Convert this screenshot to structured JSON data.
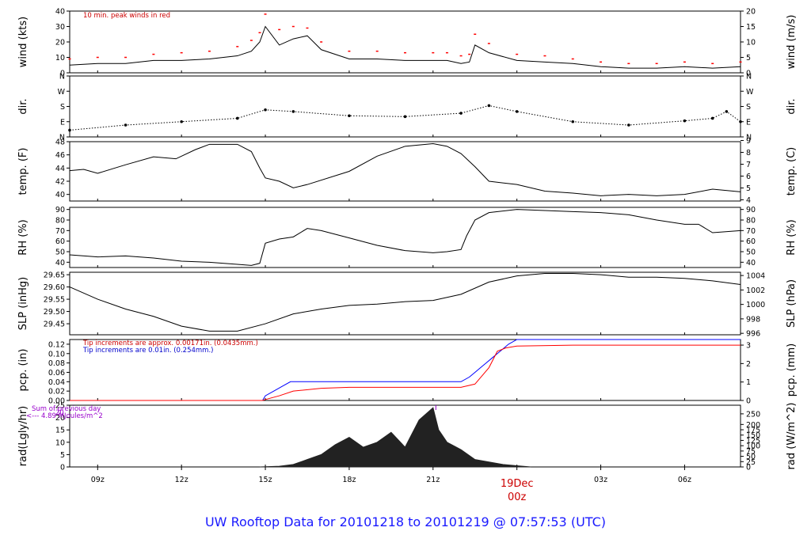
{
  "footer": {
    "title": "UW Rooftop Data for 20101218  to  20101219 @ 07:57:53  (UTC)",
    "color": "#1a1aff"
  },
  "x_axis": {
    "ticks": [
      {
        "t": 1,
        "label": "09z"
      },
      {
        "t": 4,
        "label": "12z"
      },
      {
        "t": 7,
        "label": "15z"
      },
      {
        "t": 10,
        "label": "18z"
      },
      {
        "t": 13,
        "label": "21z"
      },
      {
        "t": 16,
        "label": ""
      },
      {
        "t": 19,
        "label": "03z"
      },
      {
        "t": 22,
        "label": "06z"
      }
    ],
    "date_label": "19Dec",
    "date_sub": "00z",
    "date_color": "#cc0000"
  },
  "chart_data": [
    {
      "id": "wind",
      "type": "line",
      "ylabel_left": "wind (kts)",
      "ylabel_right": "wind (m/s)",
      "ylim": [
        0,
        40
      ],
      "yticks_left": [
        0,
        10,
        20,
        30,
        40
      ],
      "right_ylim": [
        0,
        20
      ],
      "yticks_right": [
        0,
        5,
        10,
        15,
        20
      ],
      "annotation": "10 min. peak winds in red",
      "series": [
        {
          "name": "wind speed",
          "color": "#000000",
          "x": [
            0,
            1,
            2,
            3,
            4,
            5,
            6,
            6.5,
            6.8,
            7,
            7.5,
            8,
            8.5,
            9,
            10,
            11,
            12,
            13,
            13.5,
            14,
            14.3,
            14.5,
            15,
            16,
            17,
            18,
            19,
            20,
            21,
            22,
            23,
            24
          ],
          "y": [
            5,
            6,
            6,
            8,
            8,
            9,
            11,
            14,
            20,
            30,
            18,
            22,
            24,
            15,
            9,
            9,
            8,
            8,
            8,
            6,
            7,
            18,
            13,
            8,
            7,
            6,
            4,
            3,
            3,
            4,
            3,
            4
          ]
        },
        {
          "name": "10 min. peak winds",
          "color": "#ff0000",
          "x": [
            0,
            1,
            2,
            3,
            4,
            5,
            6,
            6.5,
            6.8,
            7,
            7.5,
            8,
            8.5,
            9,
            10,
            11,
            12,
            13,
            13.5,
            14,
            14.3,
            14.5,
            15,
            16,
            17,
            18,
            19,
            20,
            21,
            22,
            23,
            24
          ],
          "y": [
            9,
            10,
            10,
            12,
            13,
            14,
            17,
            21,
            26,
            38,
            28,
            30,
            29,
            20,
            14,
            14,
            13,
            13,
            13,
            11,
            12,
            25,
            19,
            12,
            11,
            9,
            7,
            6,
            6,
            7,
            6,
            7
          ]
        }
      ]
    },
    {
      "id": "dir",
      "type": "scatter",
      "ylabel_left": "dir.",
      "ylabel_right": "dir.",
      "ylim": [
        0,
        360
      ],
      "ycats": [
        "N",
        "E",
        "S",
        "W",
        "N"
      ],
      "series": [
        {
          "name": "wind direction",
          "color": "#000000",
          "x": [
            0,
            2,
            4,
            6,
            7,
            8,
            10,
            12,
            14,
            15,
            16,
            18,
            20,
            22,
            23,
            23.5,
            24
          ],
          "y": [
            40,
            70,
            90,
            110,
            160,
            150,
            125,
            120,
            140,
            185,
            150,
            90,
            70,
            95,
            110,
            150,
            90
          ]
        }
      ]
    },
    {
      "id": "temp",
      "type": "line",
      "ylabel_left": "temp. (F)",
      "ylabel_right": "temp. (C)",
      "ylim": [
        39,
        48
      ],
      "yticks_left": [
        40,
        42,
        44,
        46,
        48
      ],
      "right_ylim": [
        3.9,
        8.9
      ],
      "yticks_right": [
        4,
        5,
        6,
        7,
        8,
        9
      ],
      "series": [
        {
          "name": "temperature",
          "color": "#000000",
          "x": [
            0,
            0.5,
            1,
            2,
            3,
            3.8,
            4.5,
            5,
            6,
            6.5,
            6.8,
            7,
            7.5,
            8,
            8.5,
            10,
            11,
            12,
            13,
            13.5,
            14,
            14.5,
            15,
            16,
            17,
            18,
            19,
            20,
            21,
            22,
            23,
            24
          ],
          "y": [
            43.6,
            43.8,
            43.2,
            44.5,
            45.7,
            45.4,
            46.8,
            47.6,
            47.6,
            46.5,
            44,
            42.5,
            42,
            41,
            41.5,
            43.5,
            45.8,
            47.3,
            47.7,
            47.3,
            46.2,
            44.2,
            42,
            41.5,
            40.5,
            40.2,
            39.8,
            40,
            39.8,
            40,
            40.8,
            40.4
          ]
        }
      ]
    },
    {
      "id": "rh",
      "type": "line",
      "ylabel_left": "RH (%)",
      "ylabel_right": "RH (%)",
      "ylim": [
        35,
        92
      ],
      "yticks_left": [
        40,
        50,
        60,
        70,
        80,
        90
      ],
      "right_ylim": [
        35,
        92
      ],
      "yticks_right": [
        40,
        50,
        60,
        70,
        80,
        90
      ],
      "series": [
        {
          "name": "relative humidity",
          "color": "#000000",
          "x": [
            0,
            1,
            2,
            3,
            4,
            5,
            6,
            6.5,
            6.8,
            7,
            7.5,
            8,
            8.5,
            9,
            10,
            11,
            12,
            13,
            13.5,
            14,
            14.2,
            14.5,
            15,
            16,
            17,
            18,
            19,
            20,
            21,
            22,
            22.5,
            23,
            24
          ],
          "y": [
            47,
            45,
            46,
            44,
            41,
            40,
            38,
            37,
            39,
            58,
            62,
            64,
            72,
            70,
            63,
            56,
            51,
            49,
            50,
            52,
            65,
            80,
            87,
            90,
            89,
            88,
            87,
            85,
            80,
            76,
            76,
            68,
            70
          ]
        }
      ]
    },
    {
      "id": "slp",
      "type": "line",
      "ylabel_left": "SLP (inHg)",
      "ylabel_right": "SLP (hPa)",
      "ylim": [
        29.405,
        29.66
      ],
      "yticks_left": [
        29.45,
        29.5,
        29.55,
        29.6,
        29.65
      ],
      "right_ylim": [
        995.8,
        1004.45
      ],
      "yticks_right": [
        996,
        998,
        1000,
        1002,
        1004
      ],
      "series": [
        {
          "name": "sea level pressure",
          "color": "#000000",
          "x": [
            0,
            1,
            2,
            3,
            4,
            5,
            6,
            7,
            8,
            9,
            10,
            11,
            12,
            13,
            14,
            15,
            16,
            17,
            18,
            19,
            20,
            21,
            22,
            23,
            24
          ],
          "y": [
            29.6,
            29.55,
            29.51,
            29.48,
            29.44,
            29.42,
            29.42,
            29.45,
            29.49,
            29.51,
            29.525,
            29.53,
            29.54,
            29.545,
            29.57,
            29.62,
            29.645,
            29.655,
            29.655,
            29.65,
            29.64,
            29.64,
            29.635,
            29.625,
            29.61
          ]
        }
      ]
    },
    {
      "id": "pcp",
      "type": "line",
      "ylabel_left": "pcp. (in)",
      "ylabel_right": "pcp. (mm)",
      "ylim": [
        0,
        0.13
      ],
      "yticks_left": [
        0,
        0.02,
        0.04,
        0.06,
        0.08,
        0.1,
        0.12
      ],
      "right_ylim": [
        0,
        3.302
      ],
      "yticks_right": [
        0,
        1,
        2,
        3
      ],
      "annotations": [
        {
          "text": "Tip increments are approx. 0.00171in. (0.0435mm.)",
          "color": "#cc0000"
        },
        {
          "text": "Tip increments are 0.01in. (0.254mm.)",
          "color": "#0000cc"
        }
      ],
      "series": [
        {
          "name": "tipping bucket",
          "color": "#0000ff",
          "x": [
            0,
            6.9,
            7,
            7.3,
            7.6,
            7.9,
            8.2,
            8.5,
            14,
            14.3,
            14.5,
            14.7,
            14.9,
            15.1,
            15.3,
            15.5,
            15.7,
            16,
            24
          ],
          "y": [
            0,
            0,
            0.01,
            0.02,
            0.03,
            0.04,
            0.04,
            0.04,
            0.04,
            0.05,
            0.06,
            0.07,
            0.08,
            0.09,
            0.1,
            0.11,
            0.12,
            0.13,
            0.13
          ]
        },
        {
          "name": "weighing gauge",
          "color": "#ff0000",
          "x": [
            0,
            6.9,
            7,
            7.5,
            8,
            9,
            10,
            14,
            14.5,
            15,
            15.3,
            15.6,
            16,
            18,
            24
          ],
          "y": [
            0,
            0,
            0.002,
            0.01,
            0.02,
            0.026,
            0.028,
            0.028,
            0.035,
            0.07,
            0.105,
            0.112,
            0.116,
            0.118,
            0.118
          ]
        }
      ]
    },
    {
      "id": "rad",
      "type": "area",
      "ylabel_left": "rad(Lgly/hr)",
      "ylabel_right": "rad (W/m^2)",
      "ylim": [
        0,
        25
      ],
      "yticks_left": [
        0,
        5,
        10,
        15,
        20,
        25
      ],
      "right_ylim": [
        0,
        290.6
      ],
      "yticks_right": [
        0,
        25,
        50,
        75,
        100,
        125,
        150,
        175,
        200,
        250
      ],
      "annotation_lines": [
        "Sum of previous day",
        "<--- 4.89 MJoules/m^2"
      ],
      "annotation_value": "20",
      "annotation_color": "#9900cc",
      "series": [
        {
          "name": "solar radiation",
          "color": "#222222",
          "x": [
            6.8,
            7.5,
            8,
            8.5,
            9,
            9.5,
            10,
            10.5,
            11,
            11.5,
            12,
            12.5,
            13,
            13.2,
            13.5,
            14,
            14.5,
            15,
            15.5,
            16,
            16.5
          ],
          "y": [
            0,
            0.3,
            1,
            3,
            5,
            9,
            12,
            8,
            10,
            14,
            8,
            19,
            24,
            15,
            10,
            7,
            3,
            2,
            1,
            0.5,
            0
          ]
        }
      ]
    }
  ]
}
